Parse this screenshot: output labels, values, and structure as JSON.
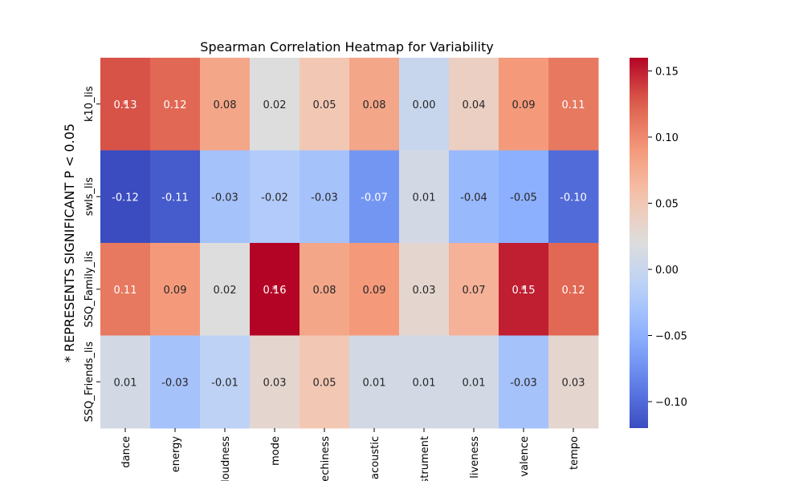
{
  "chart_data": {
    "type": "heatmap",
    "title": "Spearman Correlation Heatmap for Variability",
    "ylabel": "* REPRESENTS SIGNIFICANT P < 0.05",
    "xlabel": "",
    "x_categories": [
      "dance",
      "energy",
      "loudness",
      "mode",
      "speechiness",
      "acoustic",
      "instrument",
      "liveness",
      "valence",
      "tempo"
    ],
    "y_categories": [
      "k10_lis",
      "swls_lis",
      "SSQ_Family_lis",
      "SSQ_Friends_lis"
    ],
    "values": [
      [
        0.13,
        0.12,
        0.08,
        0.02,
        0.05,
        0.08,
        0.0,
        0.04,
        0.09,
        0.11
      ],
      [
        -0.12,
        -0.11,
        -0.03,
        -0.02,
        -0.03,
        -0.07,
        0.01,
        -0.04,
        -0.05,
        -0.1
      ],
      [
        0.11,
        0.09,
        0.02,
        0.16,
        0.08,
        0.09,
        0.03,
        0.07,
        0.15,
        0.12
      ],
      [
        0.01,
        -0.03,
        -0.01,
        0.03,
        0.05,
        0.01,
        0.01,
        0.01,
        -0.03,
        0.03
      ]
    ],
    "value_labels": [
      [
        "0.13",
        "0.12",
        "0.08",
        "0.02",
        "0.05",
        "0.08",
        "0.00",
        "0.04",
        "0.09",
        "0.11"
      ],
      [
        "-0.12",
        "-0.11",
        "-0.03",
        "-0.02",
        "-0.03",
        "-0.07",
        "0.01",
        "-0.04",
        "-0.05",
        "-0.10"
      ],
      [
        "0.11",
        "0.09",
        "0.02",
        "0.16",
        "0.08",
        "0.09",
        "0.03",
        "0.07",
        "0.15",
        "0.12"
      ],
      [
        "0.01",
        "-0.03",
        "-0.01",
        "0.03",
        "0.05",
        "0.01",
        "0.01",
        "0.01",
        "-0.03",
        "0.03"
      ]
    ],
    "significance_marker": "*",
    "significant_cells": [
      [
        0,
        0
      ],
      [
        2,
        3
      ],
      [
        2,
        8
      ]
    ],
    "colormap": "coolwarm",
    "vmin": -0.12,
    "vmax": 0.16,
    "colorbar_ticks": [
      0.15,
      0.1,
      0.05,
      0.0,
      -0.05,
      -0.1
    ],
    "colorbar_tick_labels": [
      "0.15",
      "0.10",
      "0.05",
      "0.00",
      "−0.05",
      "−0.10"
    ],
    "colorbar_position": "right",
    "grid": false
  }
}
